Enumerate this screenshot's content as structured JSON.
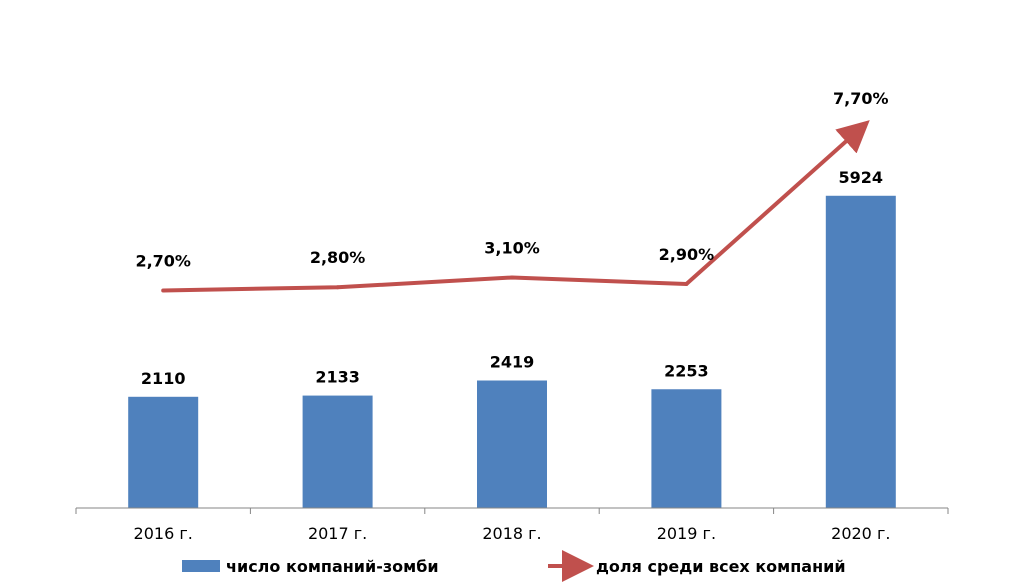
{
  "chart_data": {
    "type": "bar",
    "categories": [
      "2016 г.",
      "2017 г.",
      "2018 г.",
      "2019 г.",
      "2020 г."
    ],
    "series": [
      {
        "name": "число компаний-зомби",
        "type": "bar",
        "values": [
          2110,
          2133,
          2419,
          2253,
          5924
        ],
        "labels": [
          "2110",
          "2133",
          "2419",
          "2253",
          "5924"
        ],
        "color": "#4F81BD"
      },
      {
        "name": "доля среди всех компаний",
        "type": "line",
        "values": [
          2.7,
          2.8,
          3.1,
          2.9,
          7.7
        ],
        "labels": [
          "2,70%",
          "2,80%",
          "3,10%",
          "2,90%",
          "7,70%"
        ],
        "color": "#C0504D"
      }
    ],
    "bar_axis": {
      "min": 0,
      "max": 8500
    },
    "line_axis": {
      "min": -4.0,
      "max": 9.8
    },
    "grid": false,
    "legend_position": "bottom"
  }
}
